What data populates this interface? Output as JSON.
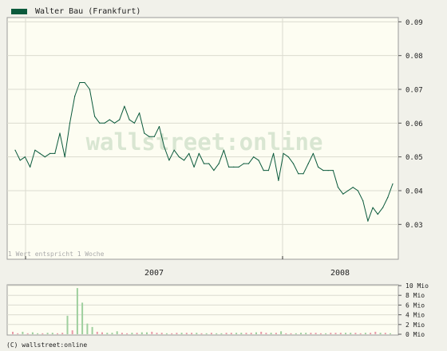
{
  "legend": {
    "label": "Walter Bau (Frankfurt)",
    "color": "#0b5a3c"
  },
  "watermark": {
    "part1": "wallstreet",
    "part2": "online"
  },
  "footer": {
    "text": "(C) wallstreet:online"
  },
  "chart_data": [
    {
      "type": "line",
      "series": [
        {
          "name": "Walter Bau (Frankfurt)",
          "color": "#0b5a3c",
          "values": [
            0.052,
            0.049,
            0.05,
            0.047,
            0.052,
            0.051,
            0.05,
            0.051,
            0.051,
            0.057,
            0.05,
            0.06,
            0.068,
            0.072,
            0.072,
            0.07,
            0.062,
            0.06,
            0.06,
            0.061,
            0.06,
            0.061,
            0.065,
            0.061,
            0.06,
            0.063,
            0.057,
            0.056,
            0.056,
            0.059,
            0.053,
            0.049,
            0.052,
            0.05,
            0.049,
            0.051,
            0.047,
            0.051,
            0.048,
            0.048,
            0.046,
            0.048,
            0.052,
            0.047,
            0.047,
            0.047,
            0.048,
            0.048,
            0.05,
            0.049,
            0.046,
            0.046,
            0.051,
            0.043,
            0.051,
            0.05,
            0.048,
            0.045,
            0.045,
            0.048,
            0.051,
            0.047,
            0.046,
            0.046,
            0.046,
            0.041,
            0.039,
            0.04,
            0.041,
            0.04,
            0.037,
            0.031,
            0.035,
            0.033,
            0.035,
            0.038,
            0.042
          ]
        }
      ],
      "x_tick_labels": [
        "2007",
        "2008"
      ],
      "y_ticks": [
        "0.09",
        "0.08",
        "0.07",
        "0.06",
        "0.05",
        "0.04",
        "0.03"
      ],
      "ylim": [
        0.02,
        0.09
      ],
      "annotation": "1 Wert entspricht 1 Woche",
      "grid": true
    },
    {
      "type": "bar",
      "series": [
        {
          "name": "Volumen",
          "values": [
            0.5,
            0.2,
            0.5,
            0.2,
            0.4,
            0.2,
            0.2,
            0.3,
            0.3,
            0.2,
            0.3,
            3.8,
            0.8,
            9.5,
            6.5,
            2.2,
            1.5,
            0.5,
            0.4,
            0.3,
            0.3,
            0.6,
            0.3,
            0.2,
            0.3,
            0.3,
            0.4,
            0.4,
            0.5,
            0.3,
            0.3,
            0.2,
            0.2,
            0.3,
            0.3,
            0.3,
            0.3,
            0.3,
            0.2,
            0.2,
            0.3,
            0.2,
            0.2,
            0.3,
            0.3,
            0.3,
            0.3,
            0.3,
            0.3,
            0.4,
            0.5,
            0.3,
            0.3,
            0.3,
            0.6,
            0.2,
            0.2,
            0.2,
            0.3,
            0.3,
            0.3,
            0.3,
            0.2,
            0.2,
            0.3,
            0.3,
            0.3,
            0.3,
            0.3,
            0.3,
            0.2,
            0.3,
            0.3,
            0.5,
            0.3,
            0.3,
            0.2
          ],
          "colors": [
            "#e89aa8",
            "#e89aa8",
            "#9ecf9e",
            "#e89aa8",
            "#9ecf9e",
            "#9ecf9e",
            "#e89aa8",
            "#9ecf9e",
            "#9ecf9e",
            "#e89aa8",
            "#e89aa8",
            "#9ecf9e",
            "#e89aa8",
            "#9ecf9e",
            "#9ecf9e",
            "#9ecf9e",
            "#9ecf9e",
            "#e89aa8",
            "#e89aa8",
            "#9ecf9e",
            "#9ecf9e",
            "#9ecf9e",
            "#e89aa8",
            "#e89aa8",
            "#9ecf9e",
            "#e89aa8",
            "#9ecf9e",
            "#9ecf9e",
            "#e89aa8",
            "#e89aa8",
            "#e89aa8",
            "#9ecf9e",
            "#e89aa8",
            "#e89aa8",
            "#9ecf9e",
            "#e89aa8",
            "#e89aa8",
            "#9ecf9e",
            "#e89aa8",
            "#9ecf9e",
            "#e89aa8",
            "#9ecf9e",
            "#9ecf9e",
            "#e89aa8",
            "#e89aa8",
            "#9ecf9e",
            "#9ecf9e",
            "#e89aa8",
            "#e89aa8",
            "#9ecf9e",
            "#e89aa8",
            "#e89aa8",
            "#9ecf9e",
            "#e89aa8",
            "#9ecf9e",
            "#e89aa8",
            "#e89aa8",
            "#9ecf9e",
            "#9ecf9e",
            "#9ecf9e",
            "#e89aa8",
            "#e89aa8",
            "#e89aa8",
            "#9ecf9e",
            "#e89aa8",
            "#e89aa8",
            "#e89aa8",
            "#9ecf9e",
            "#9ecf9e",
            "#e89aa8",
            "#e89aa8",
            "#9ecf9e",
            "#e89aa8",
            "#e89aa8",
            "#9ecf9e",
            "#e89aa8",
            "#9ecf9e"
          ]
        }
      ],
      "y_ticks": [
        "10 Mio",
        "8 Mio",
        "6 Mio",
        "4 Mio",
        "2 Mio",
        "0 Mio"
      ],
      "ylim": [
        0,
        10
      ],
      "grid": true
    }
  ]
}
